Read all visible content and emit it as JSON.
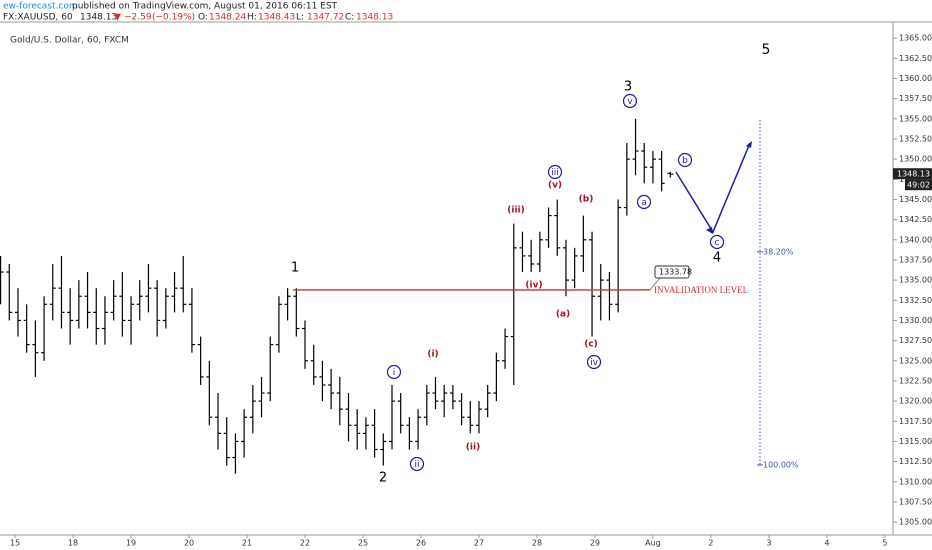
{
  "header": {
    "source": "ew-forecast.com",
    "published": "published on TradingView.com, August 01, 2016 06:11 EST",
    "symbol": "FX:XAUUSD, 60",
    "change": "−2.59",
    "change_pct": "(−0.19%)",
    "ohlc_labels": [
      "O:",
      "H:",
      "L:",
      "C:"
    ]
  },
  "chart_data": {
    "type": "ohlc",
    "title": "Gold/U.S. Dollar, 60, FXCM",
    "color": "#000000",
    "x": [
      -0.25,
      -0.1,
      0.05,
      0.2,
      0.35,
      0.5,
      0.65,
      0.8,
      0.95,
      1.1,
      1.25,
      1.4,
      1.55,
      1.7,
      1.85,
      2.0,
      2.15,
      2.3,
      2.45,
      2.6,
      2.75,
      2.9,
      3.05,
      3.2,
      3.35,
      3.5,
      3.65,
      3.8,
      3.95,
      4.1,
      4.25,
      4.4,
      4.55,
      4.7,
      4.85,
      5.0,
      5.15,
      5.3,
      5.45,
      5.6,
      5.75,
      5.9,
      6.05,
      6.2,
      6.35,
      6.5,
      6.65,
      6.8,
      6.95,
      7.1,
      7.25,
      7.4,
      7.55,
      7.7,
      7.85,
      8.0,
      8.15,
      8.3,
      8.45,
      8.6,
      8.75,
      8.9,
      9.05,
      9.2,
      9.35,
      9.5,
      9.65,
      9.8,
      9.95,
      10.1,
      10.25,
      10.4,
      10.55,
      10.7,
      10.85,
      11.0,
      11.15,
      11.3
    ],
    "open": [
      1334,
      1336,
      1331,
      1330,
      1327,
      1326,
      1332,
      1334,
      1331,
      1330,
      1333,
      1331,
      1329,
      1331,
      1333,
      1330,
      1332,
      1333,
      1334,
      1330,
      1333,
      1334,
      1332,
      1327,
      1323,
      1318,
      1316,
      1313,
      1315,
      1318,
      1320,
      1321,
      1327,
      1332,
      1333,
      1329,
      1325,
      1323,
      1322,
      1321,
      1319,
      1317,
      1316,
      1317,
      1314,
      1315,
      1320,
      1317,
      1315,
      1318,
      1321,
      1320,
      1321,
      1320,
      1318,
      1317,
      1319,
      1321,
      1325,
      1328,
      1339,
      1338,
      1337,
      1340,
      1343,
      1339,
      1335,
      1338,
      1340,
      1333,
      1335,
      1332,
      1344,
      1350,
      1351,
      1349,
      1350,
      1348.24
    ],
    "high": [
      1338,
      1337,
      1334,
      1332,
      1330,
      1333,
      1337,
      1338,
      1334,
      1335,
      1336,
      1334,
      1333,
      1335,
      1336,
      1333,
      1335,
      1337,
      1335,
      1334,
      1336,
      1338,
      1334,
      1328,
      1325,
      1321,
      1318,
      1316,
      1319,
      1322,
      1323,
      1328,
      1333,
      1334,
      1334,
      1330,
      1327,
      1325,
      1324,
      1323,
      1321,
      1319,
      1318,
      1319,
      1316,
      1322,
      1321,
      1318,
      1319,
      1322,
      1323,
      1322,
      1322,
      1321,
      1320,
      1320,
      1322,
      1326,
      1329,
      1342,
      1341,
      1340,
      1341,
      1344,
      1345,
      1340,
      1339,
      1343,
      1341,
      1337,
      1336,
      1345,
      1352,
      1355,
      1352,
      1351,
      1351,
      1348.43
    ],
    "low": [
      1332,
      1330,
      1328,
      1326,
      1323,
      1325,
      1330,
      1329,
      1327,
      1329,
      1329,
      1327,
      1327,
      1330,
      1328,
      1327,
      1330,
      1331,
      1328,
      1329,
      1331,
      1331,
      1326,
      1322,
      1317,
      1314,
      1312,
      1311,
      1313,
      1316,
      1318,
      1320,
      1326,
      1330,
      1328,
      1324,
      1322,
      1320,
      1319,
      1317,
      1315,
      1314,
      1314,
      1313,
      1312,
      1314,
      1316,
      1314,
      1314,
      1317,
      1319,
      1318,
      1319,
      1317,
      1316,
      1316,
      1318,
      1320,
      1324,
      1322,
      1336,
      1336,
      1336,
      1339,
      1338,
      1333,
      1334,
      1336,
      1328,
      1330,
      1330,
      1331,
      1343,
      1348,
      1347,
      1347,
      1346,
      1347.72
    ],
    "close": [
      1336,
      1331,
      1330,
      1327,
      1326,
      1332,
      1334,
      1331,
      1330,
      1333,
      1331,
      1329,
      1331,
      1333,
      1330,
      1332,
      1333,
      1334,
      1330,
      1333,
      1334,
      1332,
      1327,
      1323,
      1318,
      1316,
      1313,
      1315,
      1318,
      1320,
      1321,
      1327,
      1332,
      1333,
      1329,
      1325,
      1323,
      1322,
      1321,
      1319,
      1317,
      1316,
      1317,
      1314,
      1315,
      1320,
      1317,
      1315,
      1318,
      1321,
      1320,
      1321,
      1320,
      1318,
      1317,
      1319,
      1321,
      1325,
      1328,
      1339,
      1338,
      1337,
      1340,
      1343,
      1339,
      1335,
      1338,
      1340,
      1333,
      1335,
      1332,
      1344,
      1350,
      1351,
      1349,
      1350,
      1347,
      1348.13
    ],
    "countdown": "49:02",
    "xlim": [
      -0.26,
      15.14
    ],
    "xticks": [
      {
        "value": 0,
        "label": "15"
      },
      {
        "value": 1,
        "label": "18"
      },
      {
        "value": 2,
        "label": "19"
      },
      {
        "value": 3,
        "label": "20"
      },
      {
        "value": 4,
        "label": "21"
      },
      {
        "value": 5,
        "label": "22"
      },
      {
        "value": 6,
        "label": "25"
      },
      {
        "value": 7,
        "label": "26"
      },
      {
        "value": 8,
        "label": "27"
      },
      {
        "value": 9,
        "label": "28"
      },
      {
        "value": 10,
        "label": "29"
      },
      {
        "value": 11,
        "label": "Aug"
      },
      {
        "value": 12,
        "label": "2"
      },
      {
        "value": 13,
        "label": "3"
      },
      {
        "value": 14,
        "label": "4"
      },
      {
        "value": 15,
        "label": "5"
      }
    ],
    "ylim": [
      1303.4,
      1367
    ],
    "yticks": [
      {
        "value": 1305,
        "label": "1305.00"
      },
      {
        "value": 1307.5,
        "label": "1307.50"
      },
      {
        "value": 1310,
        "label": "1310.00"
      },
      {
        "value": 1312.5,
        "label": "1312.50"
      },
      {
        "value": 1315,
        "label": "1315.00"
      },
      {
        "value": 1317.5,
        "label": "1317.50"
      },
      {
        "value": 1320,
        "label": "1320.00"
      },
      {
        "value": 1322.5,
        "label": "1322.50"
      },
      {
        "value": 1325,
        "label": "1325.00"
      },
      {
        "value": 1327.5,
        "label": "1327.50"
      },
      {
        "value": 1330,
        "label": "1330.00"
      },
      {
        "value": 1332.5,
        "label": "1332.50"
      },
      {
        "value": 1335,
        "label": "1335.00"
      },
      {
        "value": 1337.5,
        "label": "1337.50"
      },
      {
        "value": 1340,
        "label": "1340.00"
      },
      {
        "value": 1342.5,
        "label": "1342.50"
      },
      {
        "value": 1345,
        "label": "1345.00"
      },
      {
        "value": 1347.5,
        "label": "1347.50"
      },
      {
        "value": 1350,
        "label": "1350.00"
      },
      {
        "value": 1352.5,
        "label": "1352.50"
      },
      {
        "value": 1355,
        "label": "1355.00"
      },
      {
        "value": 1357.5,
        "label": "1357.50"
      },
      {
        "value": 1360,
        "label": "1360.00"
      },
      {
        "value": 1362.5,
        "label": "1362.50"
      },
      {
        "value": 1365,
        "label": "1365.00"
      }
    ],
    "invalidation": {
      "level": 1333.78,
      "label": "INVALIDATION LEVEL"
    },
    "fib": [
      {
        "value": 38.2,
        "label": "38.20%"
      },
      {
        "value": 100,
        "label": "100.00%"
      }
    ],
    "wave_labels": [
      "1",
      "2",
      "3",
      "4",
      "5",
      "i",
      "ii",
      "iii",
      "iv",
      "v",
      "(i)",
      "(ii)",
      "(iii)",
      "(iv)",
      "(v)",
      "(a)",
      "(b)",
      "(c)",
      "a",
      "b",
      "c"
    ]
  }
}
